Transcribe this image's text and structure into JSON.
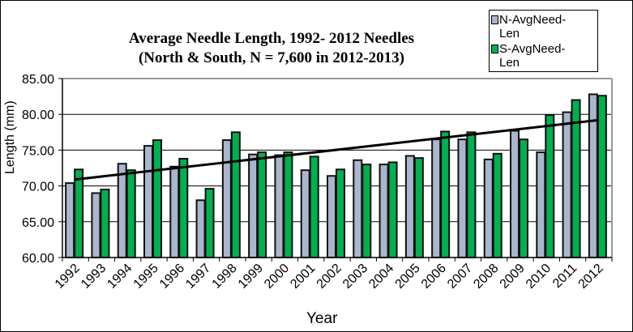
{
  "chart_data": {
    "type": "bar",
    "title": "Average Needle Length, 1992- 2012 Needles",
    "subtitle": "(North & South, N = 7,600 in 2012-2013)",
    "xlabel": "Year",
    "ylabel": "Length (mm)",
    "ylim": [
      60,
      85
    ],
    "yticks": [
      "60.00",
      "65.00",
      "70.00",
      "75.00",
      "80.00",
      "85.00"
    ],
    "ytick_values": [
      60,
      65,
      70,
      75,
      80,
      85
    ],
    "grid": true,
    "legend_position": "top-right",
    "categories": [
      "1992",
      "1993",
      "1994",
      "1995",
      "1996",
      "1997",
      "1998",
      "1999",
      "2000",
      "2001",
      "2002",
      "2003",
      "2004",
      "2005",
      "2006",
      "2007",
      "2008",
      "2009",
      "2010",
      "2011",
      "2012"
    ],
    "series": [
      {
        "name": "N-AvgNeed-Len",
        "color": "#a9b6cc",
        "values": [
          70.4,
          69.0,
          73.1,
          75.6,
          72.7,
          68.0,
          76.4,
          74.4,
          74.3,
          72.2,
          71.4,
          73.6,
          73.0,
          74.2,
          76.5,
          76.5,
          73.7,
          77.7,
          74.7,
          80.3,
          82.8
        ]
      },
      {
        "name": "S-AvgNeed-Len",
        "color": "#00b050",
        "values": [
          72.3,
          69.5,
          72.2,
          76.4,
          73.8,
          69.6,
          77.5,
          74.7,
          74.7,
          74.1,
          72.3,
          73.0,
          73.3,
          73.9,
          77.6,
          77.5,
          74.5,
          76.5,
          79.9,
          82.0,
          82.6
        ]
      }
    ],
    "trendline": {
      "type": "linear",
      "color": "#000000",
      "start": {
        "x": "1992",
        "y": 70.9
      },
      "end": {
        "x": "2012",
        "y": 79.2
      }
    }
  },
  "legend": {
    "items": [
      {
        "label_line1": "N-AvgNeed-",
        "label_line2": "Len",
        "color": "#a9b6cc"
      },
      {
        "label_line1": "S-AvgNeed-",
        "label_line2": "Len",
        "color": "#00b050"
      }
    ]
  }
}
